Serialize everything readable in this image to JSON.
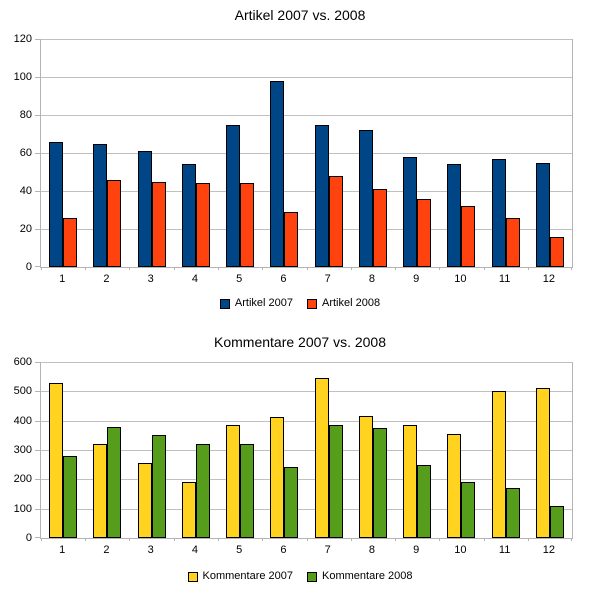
{
  "chart_data": [
    {
      "type": "bar",
      "title": "Artikel 2007 vs. 2008",
      "categories": [
        "1",
        "2",
        "3",
        "4",
        "5",
        "6",
        "7",
        "8",
        "9",
        "10",
        "11",
        "12"
      ],
      "series": [
        {
          "name": "Artikel 2007",
          "color": "#004586",
          "values": [
            66,
            65,
            61,
            54,
            75,
            98,
            75,
            72,
            58,
            54,
            57,
            55
          ]
        },
        {
          "name": "Artikel 2008",
          "color": "#FF420E",
          "values": [
            26,
            46,
            45,
            44,
            44,
            29,
            48,
            41,
            36,
            32,
            26,
            16
          ]
        }
      ],
      "xlabel": "",
      "ylabel": "",
      "ylim": [
        0,
        120
      ],
      "yticks": [
        0,
        20,
        40,
        60,
        80,
        100,
        120
      ],
      "grid": true,
      "legend_position": "bottom",
      "gridline_color": "#c0c0c0",
      "axis_color": "#b3b3b3",
      "bar_border_color": "#000000"
    },
    {
      "type": "bar",
      "title": "Kommentare 2007 vs. 2008",
      "categories": [
        "1",
        "2",
        "3",
        "4",
        "5",
        "6",
        "7",
        "8",
        "9",
        "10",
        "11",
        "12"
      ],
      "series": [
        {
          "name": "Kommentare 2007",
          "color": "#FFD320",
          "values": [
            530,
            320,
            255,
            190,
            385,
            411,
            547,
            416,
            385,
            356,
            500,
            510
          ]
        },
        {
          "name": "Kommentare 2008",
          "color": "#579D1C",
          "values": [
            280,
            377,
            350,
            320,
            320,
            243,
            385,
            374,
            249,
            190,
            170,
            108
          ]
        }
      ],
      "xlabel": "",
      "ylabel": "",
      "ylim": [
        0,
        600
      ],
      "yticks": [
        0,
        100,
        200,
        300,
        400,
        500,
        600
      ],
      "grid": true,
      "legend_position": "bottom",
      "gridline_color": "#c0c0c0",
      "axis_color": "#b3b3b3",
      "bar_border_color": "#000000"
    }
  ]
}
